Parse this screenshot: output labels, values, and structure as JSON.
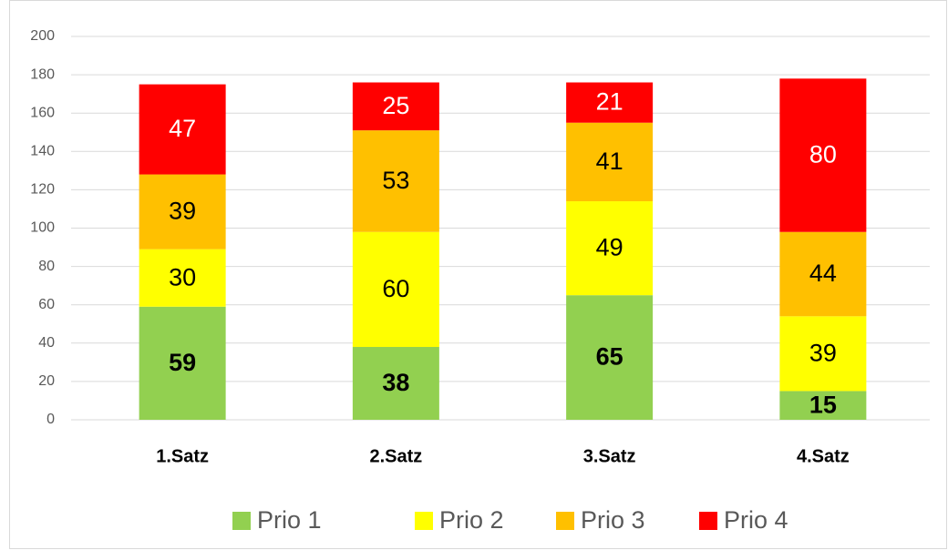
{
  "chart_data": {
    "type": "stacked_bar",
    "categories": [
      "1.Satz",
      "2.Satz",
      "3.Satz",
      "4.Satz"
    ],
    "series": [
      {
        "name": "Prio 1",
        "color": "#92d050",
        "values": [
          59,
          38,
          65,
          15
        ]
      },
      {
        "name": "Prio 2",
        "color": "#ffff00",
        "values": [
          30,
          60,
          49,
          39
        ]
      },
      {
        "name": "Prio 3",
        "color": "#ffc000",
        "values": [
          39,
          53,
          41,
          44
        ]
      },
      {
        "name": "Prio 4",
        "color": "#ff0000",
        "values": [
          47,
          25,
          21,
          80
        ]
      }
    ],
    "ylim": [
      0,
      200
    ],
    "yticks": [
      0,
      20,
      40,
      60,
      80,
      100,
      120,
      140,
      160,
      180,
      200
    ],
    "grid": true,
    "legend": "bottom"
  }
}
